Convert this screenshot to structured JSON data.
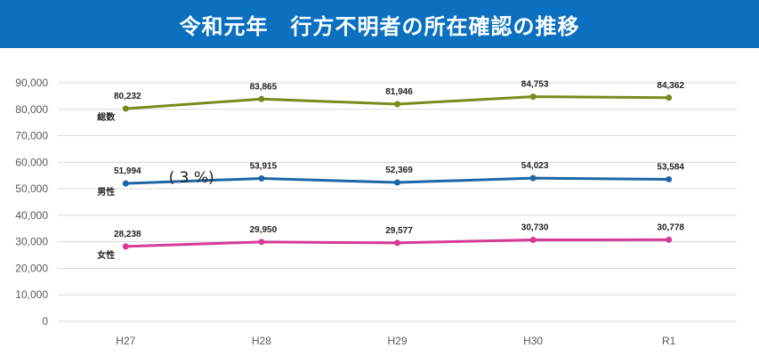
{
  "title": "令和元年　行方不明者の所在確認の推移",
  "chart_data": {
    "type": "line",
    "title": "令和元年　行方不明者の所在確認の推移",
    "categories": [
      "H27",
      "H28",
      "H29",
      "H30",
      "R1"
    ],
    "ylim": [
      0,
      90000
    ],
    "y_ticks": [
      "0",
      "10,000",
      "20,000",
      "30,000",
      "40,000",
      "50,000",
      "60,000",
      "70,000",
      "80,000",
      "90,000"
    ],
    "grid": true,
    "series": [
      {
        "name": "総数",
        "color": "#7a8b1e",
        "values": [
          80232,
          83865,
          81946,
          84753,
          84362
        ],
        "labels": [
          "80,232",
          "83,865",
          "81,946",
          "84,753",
          "84,362"
        ]
      },
      {
        "name": "男性",
        "color": "#1f66a6",
        "values": [
          51994,
          53915,
          52369,
          54023,
          53584
        ],
        "labels": [
          "51,994",
          "53,915",
          "52,369",
          "54,023",
          "53,584"
        ]
      },
      {
        "name": "女性",
        "color": "#d63a96",
        "values": [
          28238,
          29950,
          29577,
          30730,
          30778
        ],
        "labels": [
          "28,238",
          "29,950",
          "29,577",
          "30,730",
          "30,778"
        ]
      }
    ],
    "annotation": "( 3 %)"
  }
}
